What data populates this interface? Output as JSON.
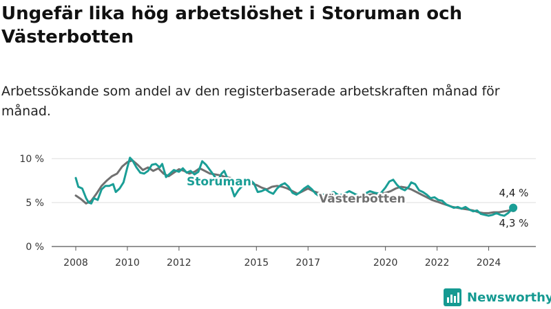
{
  "header": {
    "title": "Ungefär lika hög arbetslöshet i Storuman och Västerbotten",
    "subtitle": "Arbetssökande som andel av den registerbaserade arbetskraften månad för månad."
  },
  "brand": {
    "name": "Newsworthy",
    "color": "#159a92"
  },
  "chart_data": {
    "type": "line",
    "y_tick_labels": [
      "0 %",
      "5 %",
      "10 %"
    ],
    "y_ticks": [
      0,
      5,
      10
    ],
    "x_tick_labels": [
      "2008",
      "2010",
      "2012",
      "2015",
      "2017",
      "2020",
      "2022",
      "2024"
    ],
    "x_ticks": [
      2008,
      2010,
      2012,
      2015,
      2017,
      2020,
      2022,
      2024
    ],
    "ylim": [
      0,
      10.5
    ],
    "xlim": [
      2008,
      2025
    ],
    "grid": true,
    "series": [
      {
        "name": "Västerbotten",
        "color": "#707070",
        "end_label": "4,3 %",
        "points": [
          [
            2008.0,
            5.8
          ],
          [
            2008.2,
            5.4
          ],
          [
            2008.4,
            4.9
          ],
          [
            2008.6,
            5.2
          ],
          [
            2008.8,
            6.0
          ],
          [
            2009.0,
            6.9
          ],
          [
            2009.2,
            7.5
          ],
          [
            2009.4,
            8.0
          ],
          [
            2009.6,
            8.3
          ],
          [
            2009.8,
            9.1
          ],
          [
            2010.0,
            9.6
          ],
          [
            2010.2,
            9.8
          ],
          [
            2010.4,
            9.3
          ],
          [
            2010.6,
            8.7
          ],
          [
            2010.8,
            9.0
          ],
          [
            2011.0,
            8.6
          ],
          [
            2011.2,
            8.9
          ],
          [
            2011.4,
            8.3
          ],
          [
            2011.6,
            8.0
          ],
          [
            2011.8,
            8.4
          ],
          [
            2012.0,
            8.8
          ],
          [
            2012.2,
            8.6
          ],
          [
            2012.4,
            8.3
          ],
          [
            2012.6,
            8.5
          ],
          [
            2012.8,
            8.9
          ],
          [
            2013.0,
            8.6
          ],
          [
            2013.2,
            8.3
          ],
          [
            2013.4,
            8.2
          ],
          [
            2013.6,
            8.1
          ],
          [
            2013.8,
            7.9
          ],
          [
            2014.0,
            7.8
          ],
          [
            2014.2,
            7.6
          ],
          [
            2014.4,
            7.5
          ],
          [
            2014.6,
            7.4
          ],
          [
            2014.8,
            7.2
          ],
          [
            2015.0,
            7.0
          ],
          [
            2015.2,
            6.7
          ],
          [
            2015.4,
            6.5
          ],
          [
            2015.6,
            6.8
          ],
          [
            2015.8,
            6.9
          ],
          [
            2016.0,
            6.8
          ],
          [
            2016.2,
            6.6
          ],
          [
            2016.4,
            6.3
          ],
          [
            2016.6,
            6.0
          ],
          [
            2016.8,
            6.3
          ],
          [
            2017.0,
            6.6
          ],
          [
            2017.2,
            6.3
          ],
          [
            2017.4,
            6.1
          ],
          [
            2017.6,
            5.9
          ],
          [
            2017.8,
            5.8
          ],
          [
            2018.0,
            5.8
          ],
          [
            2018.2,
            5.7
          ],
          [
            2018.4,
            5.6
          ],
          [
            2018.6,
            5.7
          ],
          [
            2018.8,
            5.8
          ],
          [
            2019.0,
            5.8
          ],
          [
            2019.2,
            5.8
          ],
          [
            2019.4,
            5.9
          ],
          [
            2019.6,
            6.0
          ],
          [
            2019.8,
            6.0
          ],
          [
            2020.0,
            6.1
          ],
          [
            2020.2,
            6.3
          ],
          [
            2020.4,
            6.6
          ],
          [
            2020.6,
            6.8
          ],
          [
            2020.8,
            6.7
          ],
          [
            2021.0,
            6.5
          ],
          [
            2021.2,
            6.2
          ],
          [
            2021.4,
            5.9
          ],
          [
            2021.6,
            5.6
          ],
          [
            2021.8,
            5.3
          ],
          [
            2022.0,
            5.1
          ],
          [
            2022.2,
            4.9
          ],
          [
            2022.4,
            4.7
          ],
          [
            2022.6,
            4.5
          ],
          [
            2022.8,
            4.4
          ],
          [
            2023.0,
            4.3
          ],
          [
            2023.2,
            4.2
          ],
          [
            2023.4,
            4.1
          ],
          [
            2023.6,
            3.9
          ],
          [
            2023.8,
            3.8
          ],
          [
            2024.0,
            3.8
          ],
          [
            2024.2,
            3.9
          ],
          [
            2024.4,
            3.9
          ],
          [
            2024.6,
            4.0
          ],
          [
            2024.8,
            4.1
          ],
          [
            2024.95,
            4.3
          ]
        ]
      },
      {
        "name": "Storuman",
        "color": "#1a9e96",
        "end_label": "4,4 %",
        "points": [
          [
            2008.0,
            7.8
          ],
          [
            2008.1,
            6.8
          ],
          [
            2008.25,
            6.6
          ],
          [
            2008.4,
            5.5
          ],
          [
            2008.5,
            5.0
          ],
          [
            2008.6,
            4.9
          ],
          [
            2008.7,
            5.5
          ],
          [
            2008.85,
            5.3
          ],
          [
            2009.0,
            6.5
          ],
          [
            2009.15,
            6.9
          ],
          [
            2009.3,
            6.9
          ],
          [
            2009.45,
            7.1
          ],
          [
            2009.55,
            6.2
          ],
          [
            2009.7,
            6.6
          ],
          [
            2009.85,
            7.3
          ],
          [
            2010.0,
            9.0
          ],
          [
            2010.1,
            10.1
          ],
          [
            2010.2,
            9.8
          ],
          [
            2010.35,
            9.0
          ],
          [
            2010.5,
            8.4
          ],
          [
            2010.65,
            8.3
          ],
          [
            2010.8,
            8.6
          ],
          [
            2010.95,
            9.3
          ],
          [
            2011.1,
            9.4
          ],
          [
            2011.25,
            9.0
          ],
          [
            2011.35,
            9.4
          ],
          [
            2011.5,
            7.9
          ],
          [
            2011.65,
            8.3
          ],
          [
            2011.8,
            8.7
          ],
          [
            2012.0,
            8.5
          ],
          [
            2012.15,
            8.9
          ],
          [
            2012.3,
            8.4
          ],
          [
            2012.45,
            8.6
          ],
          [
            2012.6,
            8.2
          ],
          [
            2012.75,
            8.5
          ],
          [
            2012.9,
            9.7
          ],
          [
            2013.05,
            9.3
          ],
          [
            2013.2,
            8.7
          ],
          [
            2013.35,
            8.1
          ],
          [
            2013.5,
            7.4
          ],
          [
            2013.65,
            8.3
          ],
          [
            2013.75,
            8.6
          ],
          [
            2013.9,
            7.6
          ],
          [
            2014.0,
            7.0
          ],
          [
            2014.15,
            5.7
          ],
          [
            2014.3,
            6.4
          ],
          [
            2014.45,
            6.9
          ],
          [
            2014.6,
            7.4
          ],
          [
            2014.75,
            7.6
          ],
          [
            2014.9,
            7.2
          ],
          [
            2015.05,
            6.2
          ],
          [
            2015.2,
            6.3
          ],
          [
            2015.35,
            6.5
          ],
          [
            2015.5,
            6.2
          ],
          [
            2015.65,
            6.0
          ],
          [
            2015.8,
            6.6
          ],
          [
            2015.95,
            7.0
          ],
          [
            2016.1,
            7.2
          ],
          [
            2016.25,
            6.8
          ],
          [
            2016.4,
            6.1
          ],
          [
            2016.55,
            5.9
          ],
          [
            2016.7,
            6.2
          ],
          [
            2016.85,
            6.6
          ],
          [
            2017.0,
            6.9
          ],
          [
            2017.15,
            6.5
          ],
          [
            2017.3,
            6.0
          ],
          [
            2017.45,
            5.7
          ],
          [
            2017.6,
            5.9
          ],
          [
            2017.8,
            6.0
          ],
          [
            2018.0,
            6.2
          ],
          [
            2018.2,
            5.8
          ],
          [
            2018.4,
            6.0
          ],
          [
            2018.6,
            6.3
          ],
          [
            2018.8,
            6.0
          ],
          [
            2019.0,
            5.7
          ],
          [
            2019.2,
            6.0
          ],
          [
            2019.4,
            6.3
          ],
          [
            2019.6,
            6.1
          ],
          [
            2019.8,
            6.0
          ],
          [
            2020.0,
            6.7
          ],
          [
            2020.15,
            7.4
          ],
          [
            2020.3,
            7.6
          ],
          [
            2020.45,
            7.0
          ],
          [
            2020.6,
            6.6
          ],
          [
            2020.75,
            6.4
          ],
          [
            2020.9,
            6.8
          ],
          [
            2021.0,
            7.3
          ],
          [
            2021.15,
            7.1
          ],
          [
            2021.3,
            6.4
          ],
          [
            2021.45,
            6.2
          ],
          [
            2021.6,
            5.9
          ],
          [
            2021.75,
            5.5
          ],
          [
            2021.9,
            5.6
          ],
          [
            2022.05,
            5.3
          ],
          [
            2022.2,
            5.2
          ],
          [
            2022.35,
            4.8
          ],
          [
            2022.5,
            4.6
          ],
          [
            2022.65,
            4.4
          ],
          [
            2022.8,
            4.5
          ],
          [
            2022.95,
            4.3
          ],
          [
            2023.1,
            4.5
          ],
          [
            2023.25,
            4.2
          ],
          [
            2023.4,
            4.0
          ],
          [
            2023.55,
            4.1
          ],
          [
            2023.7,
            3.7
          ],
          [
            2023.85,
            3.6
          ],
          [
            2024.0,
            3.5
          ],
          [
            2024.15,
            3.6
          ],
          [
            2024.3,
            3.8
          ],
          [
            2024.45,
            3.6
          ],
          [
            2024.6,
            3.5
          ],
          [
            2024.75,
            3.8
          ],
          [
            2024.95,
            4.4
          ]
        ]
      }
    ]
  }
}
